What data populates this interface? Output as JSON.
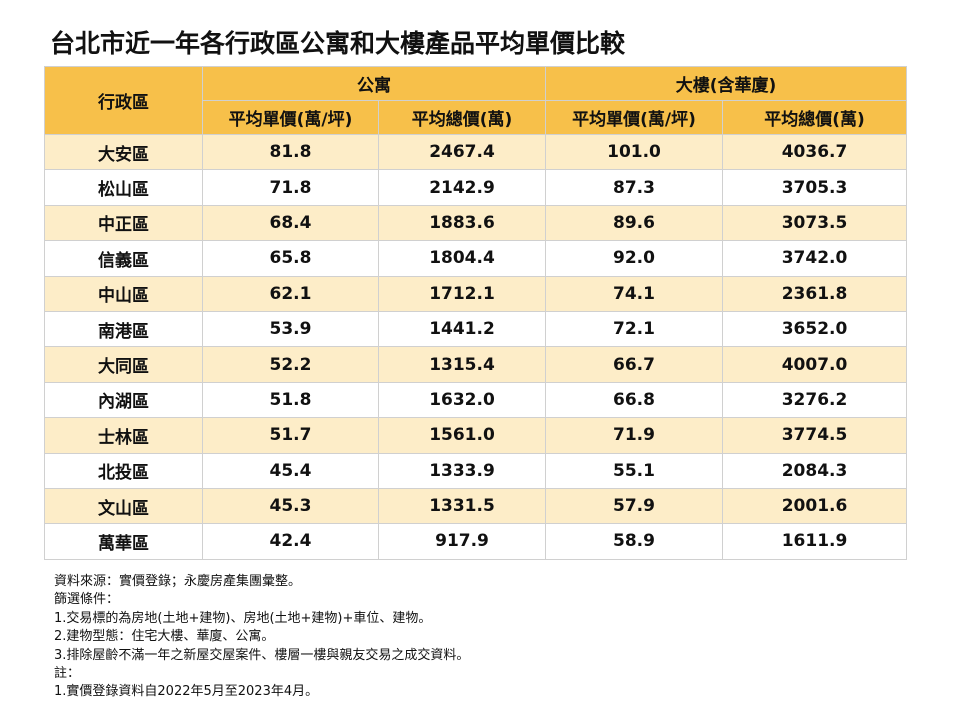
{
  "title": "台北市近一年各行政區公寓和大樓產品平均單價比較",
  "table": {
    "district_header": "行政區",
    "group_headers": [
      "公寓",
      "大樓(含華廈)"
    ],
    "sub_headers": [
      "平均單價(萬/坪)",
      "平均總價(萬)",
      "平均單價(萬/坪)",
      "平均總價(萬)"
    ],
    "rows": [
      [
        "大安區",
        "81.8",
        "2467.4",
        "101.0",
        "4036.7"
      ],
      [
        "松山區",
        "71.8",
        "2142.9",
        "87.3",
        "3705.3"
      ],
      [
        "中正區",
        "68.4",
        "1883.6",
        "89.6",
        "3073.5"
      ],
      [
        "信義區",
        "65.8",
        "1804.4",
        "92.0",
        "3742.0"
      ],
      [
        "中山區",
        "62.1",
        "1712.1",
        "74.1",
        "2361.8"
      ],
      [
        "南港區",
        "53.9",
        "1441.2",
        "72.1",
        "3652.0"
      ],
      [
        "大同區",
        "52.2",
        "1315.4",
        "66.7",
        "4007.0"
      ],
      [
        "內湖區",
        "51.8",
        "1632.0",
        "66.8",
        "3276.2"
      ],
      [
        "士林區",
        "51.7",
        "1561.0",
        "71.9",
        "3774.5"
      ],
      [
        "北投區",
        "45.4",
        "1333.9",
        "55.1",
        "2084.3"
      ],
      [
        "文山區",
        "45.3",
        "1331.5",
        "57.9",
        "2001.6"
      ],
      [
        "萬華區",
        "42.4",
        "917.9",
        "58.9",
        "1611.9"
      ]
    ]
  },
  "notes": [
    "資料來源：實價登錄；永慶房產集團彙整。",
    "篩選條件：",
    "1.交易標的為房地(土地+建物)、房地(土地+建物)+車位、建物。",
    "2.建物型態：住宅大樓、華廈、公寓。",
    "3.排除屋齡不滿一年之新屋交屋案件、樓層一樓與親友交易之成交資料。",
    "註：",
    "1.實價登錄資料自2022年5月至2023年4月。"
  ],
  "colors": {
    "header_bg": "#f7c04a",
    "row_alt_bg": "#fdedc8",
    "row_bg": "#ffffff"
  }
}
